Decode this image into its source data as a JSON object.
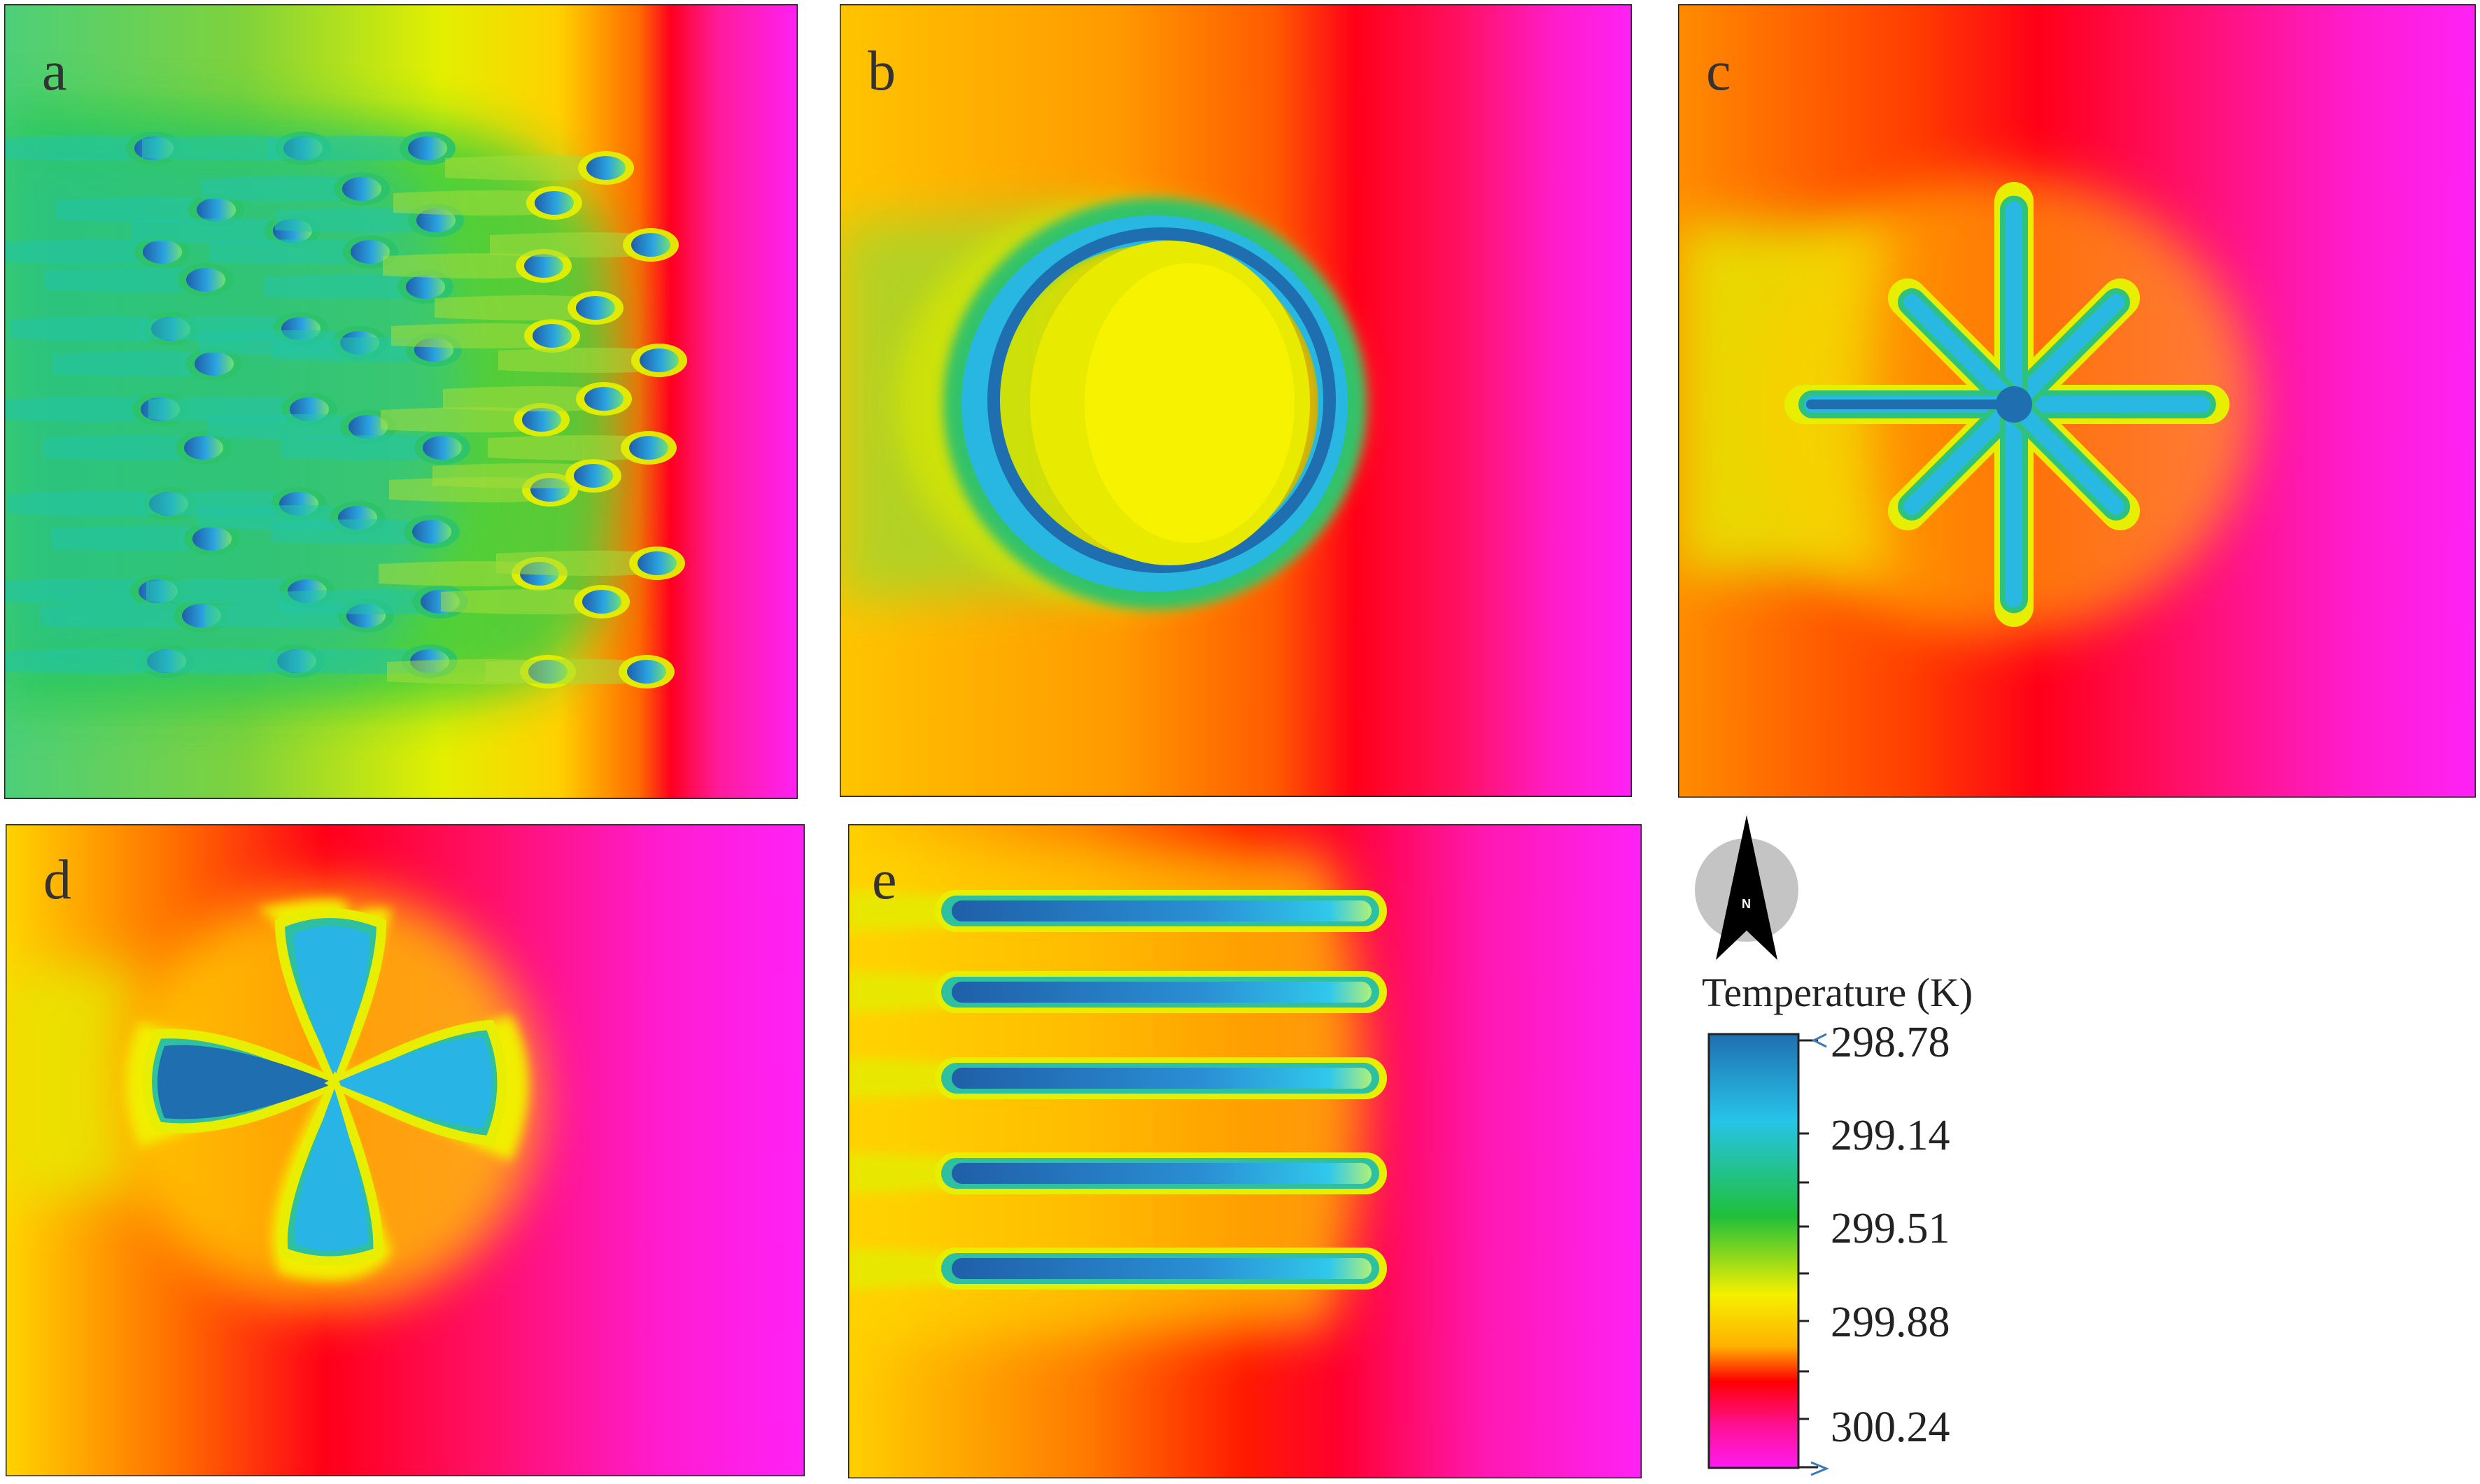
{
  "panels": [
    {
      "id": "a",
      "label": "a",
      "pattern": "dot-array"
    },
    {
      "id": "b",
      "label": "b",
      "pattern": "ring"
    },
    {
      "id": "c",
      "label": "c",
      "pattern": "eight-point-star"
    },
    {
      "id": "d",
      "label": "d",
      "pattern": "four-petal-cross"
    },
    {
      "id": "e",
      "label": "e",
      "pattern": "parallel-bars"
    }
  ],
  "legend": {
    "title": "Temperature (K)",
    "ticks": [
      "298.78",
      "299.14",
      "299.51",
      "299.88",
      "300.24"
    ],
    "colors": [
      "#1f6fb0",
      "#27c4e8",
      "#1fbf3a",
      "#f5f000",
      "#ff0000",
      "#ff1cf2"
    ]
  },
  "compass": {
    "letter": "N",
    "icon": "north-arrow-icon"
  }
}
